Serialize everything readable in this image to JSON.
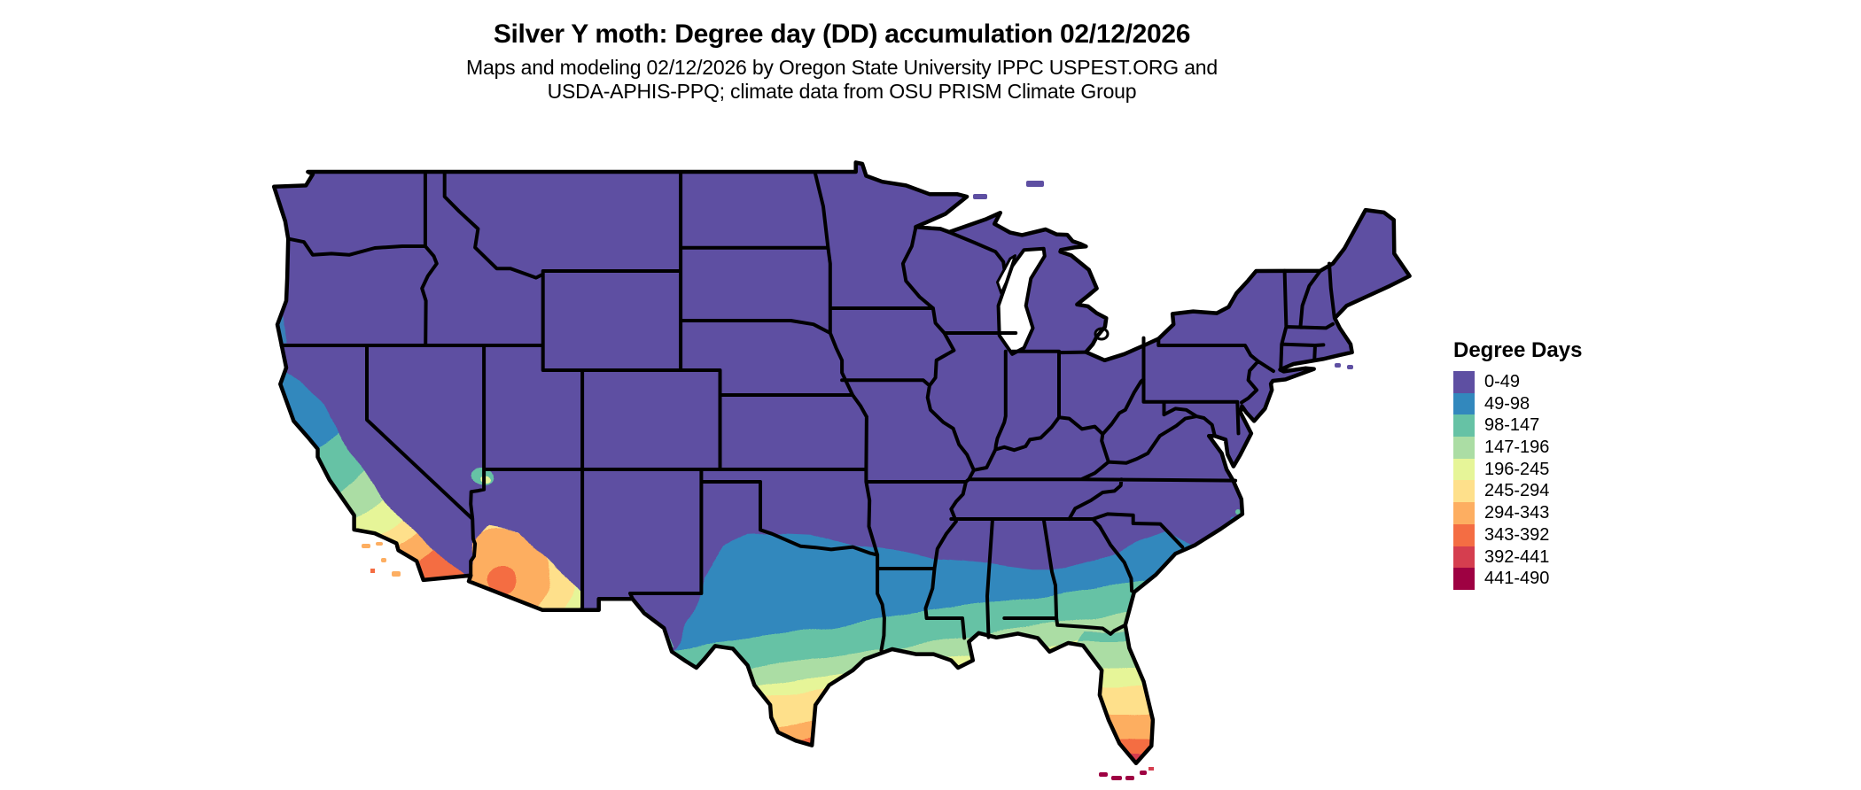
{
  "header": {
    "title": "Silver Y moth: Degree day (DD) accumulation 02/12/2026",
    "subtitle_line1": "Maps and modeling 02/12/2026 by Oregon State University IPPC USPEST.ORG and",
    "subtitle_line2": "USDA-APHIS-PPQ; climate data from OSU PRISM Climate Group"
  },
  "legend": {
    "title": "Degree Days",
    "bins": [
      {
        "label": "0-49",
        "color": "#5e4fa2"
      },
      {
        "label": "49-98",
        "color": "#3288bd"
      },
      {
        "label": "98-147",
        "color": "#66c2a5"
      },
      {
        "label": "147-196",
        "color": "#abdda4"
      },
      {
        "label": "196-245",
        "color": "#e6f598"
      },
      {
        "label": "245-294",
        "color": "#fee08b"
      },
      {
        "label": "294-343",
        "color": "#fdae61"
      },
      {
        "label": "343-392",
        "color": "#f46d43"
      },
      {
        "label": "392-441",
        "color": "#d53e4f"
      },
      {
        "label": "441-490",
        "color": "#9e0142"
      }
    ]
  },
  "map": {
    "region_label": "Contiguous United States",
    "state_border_color": "#000000",
    "water_color": "#ffffff",
    "background_color": "#ffffff"
  }
}
